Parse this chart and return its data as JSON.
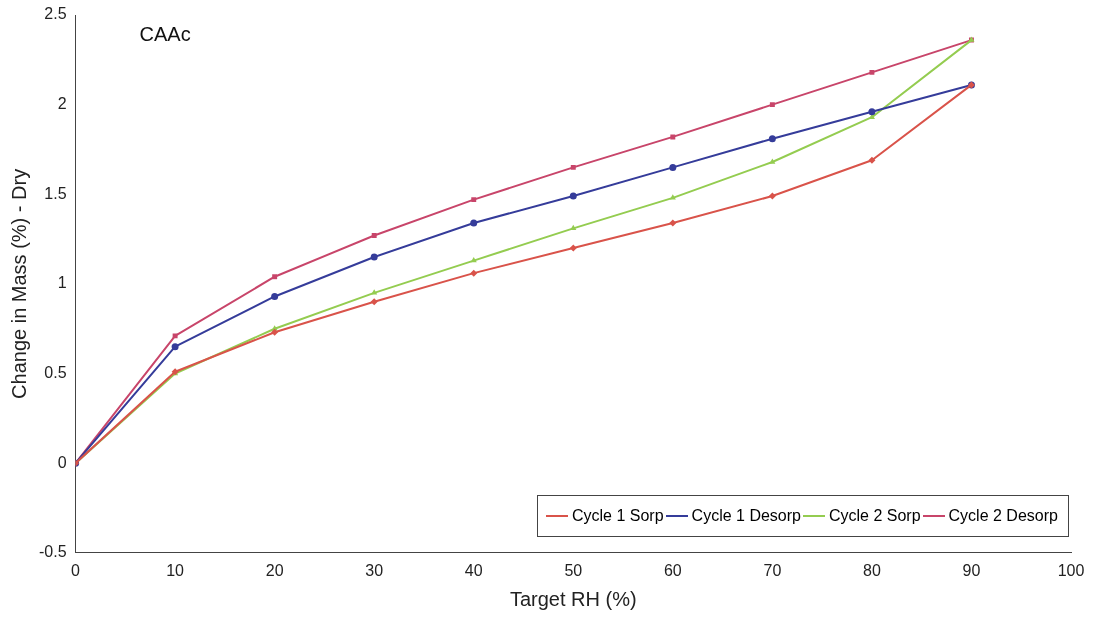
{
  "chart_data": {
    "type": "line",
    "title": "CAAc",
    "xlabel": "Target RH (%)",
    "ylabel": "Change in Mass (%) - Dry",
    "x": [
      0,
      10,
      20,
      30,
      40,
      50,
      60,
      70,
      80,
      90
    ],
    "xlim": [
      0,
      100
    ],
    "xticks": [
      0,
      10,
      20,
      30,
      40,
      50,
      60,
      70,
      80,
      90,
      100
    ],
    "ylim": [
      -0.5,
      2.5
    ],
    "yticks": [
      -0.5,
      0,
      0.5,
      1,
      1.5,
      2,
      2.5
    ],
    "grid": false,
    "legend": "bottom right",
    "line_style": "solid",
    "series": [
      {
        "name": "Cycle 1 Sorp",
        "color": "#d9534a",
        "marker": "diamond",
        "values": [
          0,
          0.51,
          0.73,
          0.9,
          1.06,
          1.2,
          1.34,
          1.49,
          1.69,
          2.11
        ]
      },
      {
        "name": "Cycle 1 Desorp",
        "color": "#353c9a",
        "marker": "circle",
        "values": [
          0,
          0.65,
          0.93,
          1.15,
          1.34,
          1.49,
          1.65,
          1.81,
          1.96,
          2.11
        ]
      },
      {
        "name": "Cycle 2 Sorp",
        "color": "#94cc50",
        "marker": "triangle",
        "values": [
          0,
          0.5,
          0.75,
          0.95,
          1.13,
          1.31,
          1.48,
          1.68,
          1.93,
          2.36
        ]
      },
      {
        "name": "Cycle 2 Desorp",
        "color": "#c8456a",
        "marker": "square",
        "values": [
          0,
          0.71,
          1.04,
          1.27,
          1.47,
          1.65,
          1.82,
          2.0,
          2.18,
          2.36
        ]
      }
    ]
  }
}
